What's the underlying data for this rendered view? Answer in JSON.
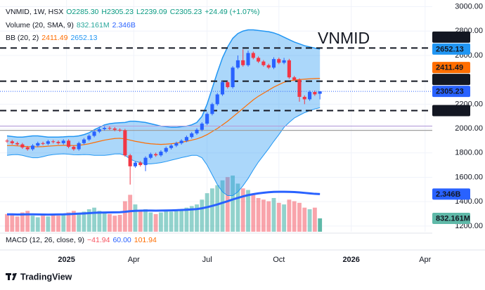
{
  "chart_data": {
    "type": "candlestick",
    "legend": {
      "symbol": "VNMID, 1W, HSX",
      "ohlc": [
        "O2285.30",
        "H2305.23",
        "L2239.09",
        "C2305.23"
      ],
      "change": "+24.49 (+1.07%)",
      "volume": "Volume (20, SMA, 9)",
      "volume_values": [
        "832.161M",
        "2.346B"
      ],
      "bb": "BB (20, 2)",
      "bb_values": [
        "2411.49",
        "2652.13"
      ],
      "macd": "MACD (12, 26, close, 9)",
      "macd_values": [
        "−41.94",
        "60.00",
        "101.94"
      ]
    },
    "annotation": "VNMID",
    "xlim": [
      -1.37,
      82.9
    ],
    "xticks": [
      {
        "value": 11.6,
        "label": "2025"
      },
      {
        "value": 24.7,
        "label": "Apr"
      },
      {
        "value": 39.0,
        "label": "Jul"
      },
      {
        "value": 53.0,
        "label": "Oct"
      },
      {
        "value": 67.1,
        "label": "2026"
      },
      {
        "value": 81.5,
        "label": "Apr"
      }
    ],
    "ylim": [
      1153,
      3055
    ],
    "yticks": [
      {
        "value": 1200,
        "label": "1200.00"
      },
      {
        "value": 1400,
        "label": "1400.00"
      },
      {
        "value": 1600,
        "label": "1600.00"
      },
      {
        "value": 1800,
        "label": "1800.00"
      },
      {
        "value": 2000,
        "label": "2000.00"
      },
      {
        "value": 2200,
        "label": "2200.00"
      },
      {
        "value": 2600,
        "label": "2600.00"
      },
      {
        "value": 2800,
        "label": "2800.00"
      },
      {
        "value": 3000,
        "label": "3000.00"
      }
    ],
    "open": [
      1900,
      1895,
      1880,
      1870,
      1845,
      1830,
      1860,
      1880,
      1875,
      1895,
      1890,
      1880,
      1900,
      1850,
      1830,
      1880,
      1910,
      1940,
      1975,
      1995,
      2005,
      2000,
      1990,
      1985,
      1780,
      1690,
      1720,
      1700,
      1760,
      1790,
      1780,
      1810,
      1840,
      1860,
      1880,
      1900,
      1930,
      1960,
      1990,
      2040,
      2120,
      2200,
      2280,
      2380,
      2340,
      2500,
      2560,
      2520,
      2620,
      2580,
      2550,
      2520,
      2500,
      2570,
      2540,
      2560,
      2420,
      2400,
      2260,
      2240,
      2300,
      2285.3
    ],
    "high": [
      1912,
      1907,
      1892,
      1882,
      1857,
      1872,
      1892,
      1892,
      1907,
      1907,
      1902,
      1912,
      1912,
      1862,
      1892,
      1922,
      1952,
      1987,
      2007,
      2017,
      2017,
      2012,
      2002,
      1997,
      1792,
      1732,
      1732,
      1772,
      1802,
      1802,
      1822,
      1852,
      1872,
      1892,
      1912,
      1942,
      1972,
      2002,
      2052,
      2132,
      2212,
      2292,
      2392,
      2392,
      2512,
      2600,
      2650,
      2640,
      2632,
      2592,
      2562,
      2532,
      2585,
      2582,
      2580,
      2572,
      2432,
      2412,
      2272,
      2312,
      2312,
      2305.23
    ],
    "low": [
      1883,
      1868,
      1858,
      1833,
      1818,
      1818,
      1848,
      1863,
      1863,
      1878,
      1868,
      1868,
      1838,
      1818,
      1818,
      1868,
      1898,
      1928,
      1963,
      1983,
      1988,
      1978,
      1973,
      1768,
      1540,
      1678,
      1688,
      1650,
      1748,
      1768,
      1768,
      1798,
      1828,
      1848,
      1868,
      1888,
      1918,
      1948,
      1978,
      2028,
      2108,
      2188,
      2268,
      2328,
      2328,
      2488,
      2508,
      2508,
      2568,
      2538,
      2508,
      2488,
      2488,
      2528,
      2528,
      2408,
      2388,
      2220,
      2200,
      2228,
      2268,
      2239.09
    ],
    "close": [
      1895,
      1880,
      1870,
      1845,
      1830,
      1860,
      1880,
      1875,
      1895,
      1890,
      1880,
      1900,
      1850,
      1830,
      1880,
      1910,
      1940,
      1975,
      1995,
      2005,
      2000,
      1990,
      1985,
      1780,
      1690,
      1720,
      1700,
      1760,
      1790,
      1780,
      1810,
      1840,
      1860,
      1880,
      1900,
      1930,
      1960,
      1990,
      2040,
      2120,
      2200,
      2280,
      2380,
      2340,
      2500,
      2560,
      2520,
      2620,
      2580,
      2550,
      2520,
      2500,
      2570,
      2540,
      2560,
      2420,
      2400,
      2260,
      2240,
      2300,
      2280.74,
      2305.23
    ],
    "up_color": "#2962ff",
    "down_color": "#f23645",
    "volume": {
      "values": [
        1100000000,
        1050000000,
        950000000,
        1200000000,
        1300000000,
        1000000000,
        900000000,
        1000000000,
        950000000,
        1100000000,
        1000000000,
        1050000000,
        1200000000,
        1300000000,
        1150000000,
        1250000000,
        1400000000,
        1500000000,
        1300000000,
        1200000000,
        1100000000,
        1000000000,
        1050000000,
        1900000000,
        2300000000,
        1700000000,
        1300000000,
        1400000000,
        1200000000,
        1100000000,
        1200000000,
        1300000000,
        1250000000,
        1350000000,
        1400000000,
        1500000000,
        1600000000,
        1700000000,
        2000000000,
        2400000000,
        2700000000,
        2900000000,
        3200000000,
        3400000000,
        3500000000,
        3000000000,
        2700000000,
        2600000000,
        2300000000,
        2100000000,
        2000000000,
        1900000000,
        2100000000,
        1800000000,
        1700000000,
        2000000000,
        1900000000,
        1800000000,
        1500000000,
        1400000000,
        1500000000,
        832161000
      ],
      "sma": [
        1080000000,
        1080000000,
        1070000000,
        1075000000,
        1085000000,
        1080000000,
        1075000000,
        1070000000,
        1065000000,
        1070000000,
        1075000000,
        1080000000,
        1095000000,
        1110000000,
        1125000000,
        1140000000,
        1160000000,
        1180000000,
        1190000000,
        1200000000,
        1205000000,
        1210000000,
        1215000000,
        1240000000,
        1280000000,
        1300000000,
        1310000000,
        1320000000,
        1320000000,
        1315000000,
        1320000000,
        1325000000,
        1330000000,
        1340000000,
        1355000000,
        1370000000,
        1390000000,
        1410000000,
        1460000000,
        1530000000,
        1610000000,
        1700000000,
        1800000000,
        1900000000,
        2010000000,
        2110000000,
        2200000000,
        2280000000,
        2340000000,
        2390000000,
        2430000000,
        2460000000,
        2480000000,
        2490000000,
        2490000000,
        2480000000,
        2470000000,
        2450000000,
        2420000000,
        2390000000,
        2360000000,
        2346000000
      ],
      "up_color": "rgba(38,166,154,0.5)",
      "down_color": "rgba(242,54,69,0.45)",
      "sma_color": "#2962ff",
      "last_color": "#5fb9a8",
      "labels": [
        {
          "value": 2346000000,
          "label": "2.346B"
        },
        {
          "value": 832161000,
          "label": "832.161M"
        }
      ]
    },
    "bollinger": {
      "upper": [
        1940,
        1935,
        1930,
        1930,
        1935,
        1940,
        1940,
        1935,
        1930,
        1930,
        1930,
        1932,
        1935,
        1935,
        1940,
        1950,
        1965,
        1990,
        2010,
        2030,
        2040,
        2045,
        2048,
        2050,
        2060,
        2060,
        2055,
        2050,
        2040,
        2030,
        2020,
        2015,
        2010,
        2010,
        2015,
        2020,
        2030,
        2050,
        2100,
        2200,
        2330,
        2460,
        2580,
        2670,
        2740,
        2780,
        2800,
        2810,
        2810,
        2805,
        2800,
        2795,
        2785,
        2770,
        2750,
        2730,
        2710,
        2695,
        2680,
        2670,
        2660,
        2652.13
      ],
      "middle": [
        1860,
        1860,
        1858,
        1855,
        1852,
        1850,
        1850,
        1852,
        1855,
        1858,
        1860,
        1862,
        1862,
        1860,
        1862,
        1868,
        1875,
        1885,
        1895,
        1905,
        1912,
        1918,
        1920,
        1915,
        1905,
        1895,
        1888,
        1880,
        1875,
        1872,
        1870,
        1872,
        1875,
        1880,
        1888,
        1895,
        1905,
        1915,
        1930,
        1950,
        1975,
        2000,
        2030,
        2060,
        2095,
        2130,
        2165,
        2200,
        2235,
        2265,
        2290,
        2315,
        2340,
        2360,
        2380,
        2390,
        2398,
        2402,
        2405,
        2408,
        2410,
        2411.49
      ],
      "lower": [
        1780,
        1785,
        1786,
        1780,
        1769,
        1760,
        1760,
        1769,
        1780,
        1786,
        1790,
        1792,
        1789,
        1785,
        1784,
        1786,
        1785,
        1780,
        1780,
        1780,
        1784,
        1791,
        1792,
        1780,
        1750,
        1730,
        1721,
        1710,
        1710,
        1714,
        1720,
        1729,
        1740,
        1750,
        1761,
        1770,
        1780,
        1780,
        1760,
        1700,
        1620,
        1540,
        1480,
        1450,
        1450,
        1480,
        1530,
        1590,
        1660,
        1725,
        1780,
        1835,
        1895,
        1950,
        2010,
        2050,
        2086,
        2109,
        2130,
        2146,
        2160,
        2170.85
      ],
      "upper_color": "#2196f3",
      "middle_color": "#ff6d00",
      "lower_color": "#2196f3",
      "fill": "rgba(33,150,243,0.38)"
    },
    "levels": [
      2661.14,
      2388.59,
      2147.23
    ],
    "zone": [
      2020,
      1985
    ],
    "zone_colors": [
      "#b39ddb",
      "#9e9e9e"
    ],
    "footer": "TradingView"
  }
}
